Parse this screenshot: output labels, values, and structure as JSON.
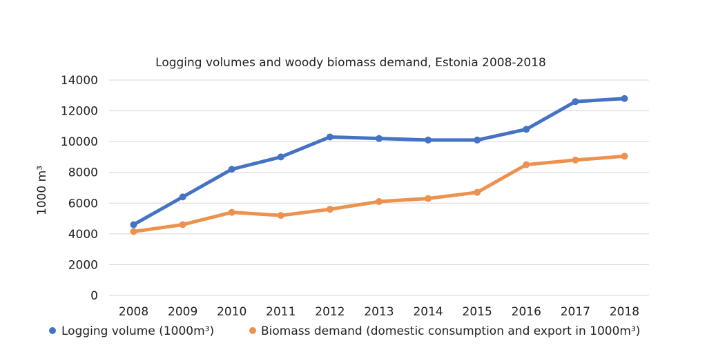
{
  "chart_data": {
    "type": "line",
    "title": "Logging volumes and woody biomass demand, Estonia 2008-2018",
    "xlabel": "",
    "ylabel": "1000 m³",
    "ylim": [
      0,
      14000
    ],
    "yticks": [
      0,
      2000,
      4000,
      6000,
      8000,
      10000,
      12000,
      14000
    ],
    "yticks_text": [
      "0",
      "2000",
      "4000",
      "6000",
      "8000",
      "10000",
      "12000",
      "14000"
    ],
    "grid": true,
    "legend_position": "bottom",
    "categories": [
      "2008",
      "2009",
      "2010",
      "2011",
      "2012",
      "2013",
      "2014",
      "2015",
      "2016",
      "2017",
      "2018"
    ],
    "series": [
      {
        "name": "Logging volume (1000m³)",
        "color": "#4472C4",
        "values": [
          4600,
          6400,
          8200,
          9000,
          10300,
          10200,
          10100,
          10100,
          10800,
          12600,
          12800
        ]
      },
      {
        "name": "Biomass demand (domestic consumption and export in 1000m³)",
        "color": "#ED924E",
        "values": [
          4150,
          4600,
          5400,
          5200,
          5600,
          6100,
          6300,
          6700,
          8500,
          8800,
          9050
        ]
      }
    ]
  }
}
